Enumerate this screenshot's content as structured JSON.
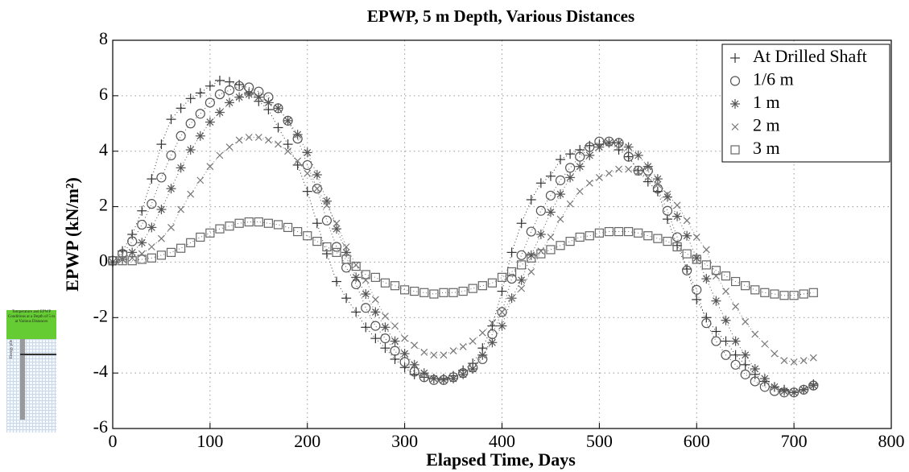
{
  "chart_data": {
    "type": "scatter",
    "title": "EPWP, 5 m Depth, Various Distances",
    "x_label": "Elapsed Time, Days",
    "y_label": "EPWP (kN/m²)",
    "xlim": [
      0,
      800
    ],
    "xticks": [
      0,
      100,
      200,
      300,
      400,
      500,
      600,
      700,
      800
    ],
    "ylim": [
      -6,
      8
    ],
    "yticks": [
      -6,
      -4,
      -2,
      0,
      2,
      4,
      6,
      8
    ],
    "grid": true,
    "legend": "upper right",
    "x": [
      0,
      10,
      20,
      30,
      40,
      50,
      60,
      70,
      80,
      90,
      100,
      110,
      120,
      130,
      140,
      150,
      160,
      170,
      180,
      190,
      200,
      210,
      220,
      230,
      240,
      250,
      260,
      270,
      280,
      290,
      300,
      310,
      320,
      330,
      340,
      350,
      360,
      370,
      380,
      390,
      400,
      410,
      420,
      430,
      440,
      450,
      460,
      470,
      480,
      490,
      500,
      510,
      520,
      530,
      540,
      550,
      560,
      570,
      580,
      590,
      600,
      610,
      620,
      630,
      640,
      650,
      660,
      670,
      680,
      690,
      700,
      710,
      720
    ],
    "series": [
      {
        "name": "At Drilled Shaft",
        "marker": "+",
        "color": "#333333",
        "values": [
          0,
          0.4,
          1.0,
          1.85,
          3.0,
          4.25,
          5.15,
          5.55,
          5.9,
          6.1,
          6.35,
          6.55,
          6.5,
          6.4,
          6.1,
          5.8,
          5.5,
          4.85,
          4.25,
          3.5,
          2.55,
          1.4,
          0.3,
          -0.7,
          -1.3,
          -1.8,
          -2.35,
          -2.75,
          -3.1,
          -3.5,
          -3.8,
          -4.05,
          -4.15,
          -4.2,
          -4.2,
          -4.1,
          -3.9,
          -3.65,
          -3.1,
          -2.3,
          -1.05,
          0.35,
          1.4,
          2.25,
          2.85,
          3.1,
          3.7,
          3.9,
          4.05,
          4.2,
          4.25,
          4.3,
          4.05,
          3.8,
          3.3,
          2.9,
          2.55,
          1.55,
          0.6,
          -0.25,
          -1.35,
          -2.0,
          -2.5,
          -2.85,
          -3.35,
          -3.7,
          -4.05,
          -4.3,
          -4.5,
          -4.6,
          -4.7,
          -4.6,
          -4.4
        ]
      },
      {
        "name": "1/6 m",
        "marker": "o",
        "color": "#555555",
        "values": [
          0.05,
          0.3,
          0.75,
          1.35,
          2.1,
          3.05,
          3.85,
          4.55,
          5.0,
          5.35,
          5.75,
          6.05,
          6.2,
          6.35,
          6.3,
          6.15,
          5.95,
          5.55,
          5.1,
          4.45,
          3.5,
          2.65,
          1.5,
          0.55,
          -0.2,
          -0.8,
          -1.65,
          -2.3,
          -2.75,
          -3.2,
          -3.6,
          -3.95,
          -4.15,
          -4.25,
          -4.25,
          -4.15,
          -4.0,
          -3.8,
          -3.5,
          -2.6,
          -1.8,
          -0.6,
          0.25,
          1.1,
          1.85,
          2.4,
          2.95,
          3.4,
          3.8,
          4.15,
          4.35,
          4.35,
          4.3,
          3.8,
          3.3,
          3.3,
          2.65,
          1.85,
          0.9,
          -0.3,
          -1.0,
          -2.2,
          -2.85,
          -3.35,
          -3.7,
          -4.05,
          -4.3,
          -4.5,
          -4.65,
          -4.7,
          -4.7,
          -4.6,
          -4.45
        ]
      },
      {
        "name": "1 m",
        "marker": "*",
        "color": "#555555",
        "values": [
          0,
          0.1,
          0.35,
          0.7,
          1.25,
          1.9,
          2.65,
          3.4,
          4.05,
          4.55,
          5.05,
          5.4,
          5.75,
          5.95,
          6.05,
          5.95,
          5.75,
          5.55,
          5.1,
          4.6,
          3.95,
          3.15,
          2.2,
          1.2,
          0.35,
          -0.55,
          -1.15,
          -1.8,
          -2.35,
          -2.85,
          -3.3,
          -3.7,
          -4.0,
          -4.2,
          -4.25,
          -4.2,
          -4.05,
          -3.85,
          -3.35,
          -2.9,
          -2.3,
          -1.3,
          -0.65,
          0.25,
          1.0,
          1.8,
          2.45,
          3.05,
          3.45,
          3.85,
          4.15,
          4.3,
          4.3,
          4.15,
          3.85,
          3.45,
          3.0,
          2.35,
          1.65,
          0.95,
          0.15,
          -0.6,
          -1.4,
          -2.1,
          -2.85,
          -3.35,
          -3.85,
          -4.2,
          -4.5,
          -4.65,
          -4.7,
          -4.6,
          -4.45
        ]
      },
      {
        "name": "2 m",
        "marker": "x",
        "color": "#777777",
        "values": [
          0,
          0.1,
          0.15,
          0.3,
          0.55,
          0.85,
          1.25,
          1.9,
          2.45,
          2.95,
          3.45,
          3.85,
          4.15,
          4.4,
          4.5,
          4.5,
          4.4,
          4.25,
          4.0,
          3.65,
          3.2,
          2.65,
          2.05,
          1.4,
          0.55,
          -0.1,
          -0.65,
          -1.35,
          -1.95,
          -2.3,
          -2.75,
          -3.0,
          -3.25,
          -3.35,
          -3.35,
          -3.2,
          -3.05,
          -2.85,
          -2.55,
          -2.2,
          -1.8,
          -1.3,
          -0.95,
          -0.35,
          0.4,
          0.9,
          1.55,
          2.1,
          2.55,
          2.85,
          3.05,
          3.2,
          3.35,
          3.35,
          3.25,
          3.05,
          2.8,
          2.45,
          2.05,
          1.5,
          0.9,
          0.45,
          -0.5,
          -1.05,
          -1.6,
          -2.15,
          -2.6,
          -2.95,
          -3.3,
          -3.55,
          -3.6,
          -3.55,
          -3.45
        ]
      },
      {
        "name": "3 m",
        "marker": "s",
        "color": "#666666",
        "values": [
          0.05,
          0.05,
          0.05,
          0.1,
          0.15,
          0.25,
          0.35,
          0.5,
          0.7,
          0.9,
          1.05,
          1.2,
          1.3,
          1.4,
          1.45,
          1.45,
          1.4,
          1.35,
          1.25,
          1.1,
          0.95,
          0.75,
          0.55,
          0.35,
          0.1,
          -0.15,
          -0.45,
          -0.55,
          -0.75,
          -0.85,
          -1.0,
          -1.05,
          -1.1,
          -1.15,
          -1.1,
          -1.1,
          -1.05,
          -0.95,
          -0.85,
          -0.75,
          -0.55,
          -0.35,
          -0.1,
          0.15,
          0.3,
          0.45,
          0.6,
          0.75,
          0.9,
          0.95,
          1.05,
          1.1,
          1.1,
          1.1,
          1.05,
          0.95,
          0.85,
          0.75,
          0.55,
          0.3,
          0.1,
          -0.1,
          -0.3,
          -0.5,
          -0.7,
          -0.85,
          -1.0,
          -1.1,
          -1.15,
          -1.2,
          -1.2,
          -1.15,
          -1.1
        ]
      }
    ]
  },
  "inset": {
    "caption": "Temperature and EPWP Conditions at a Depth of 5 m at Various Distances",
    "label": "Energy pile"
  }
}
